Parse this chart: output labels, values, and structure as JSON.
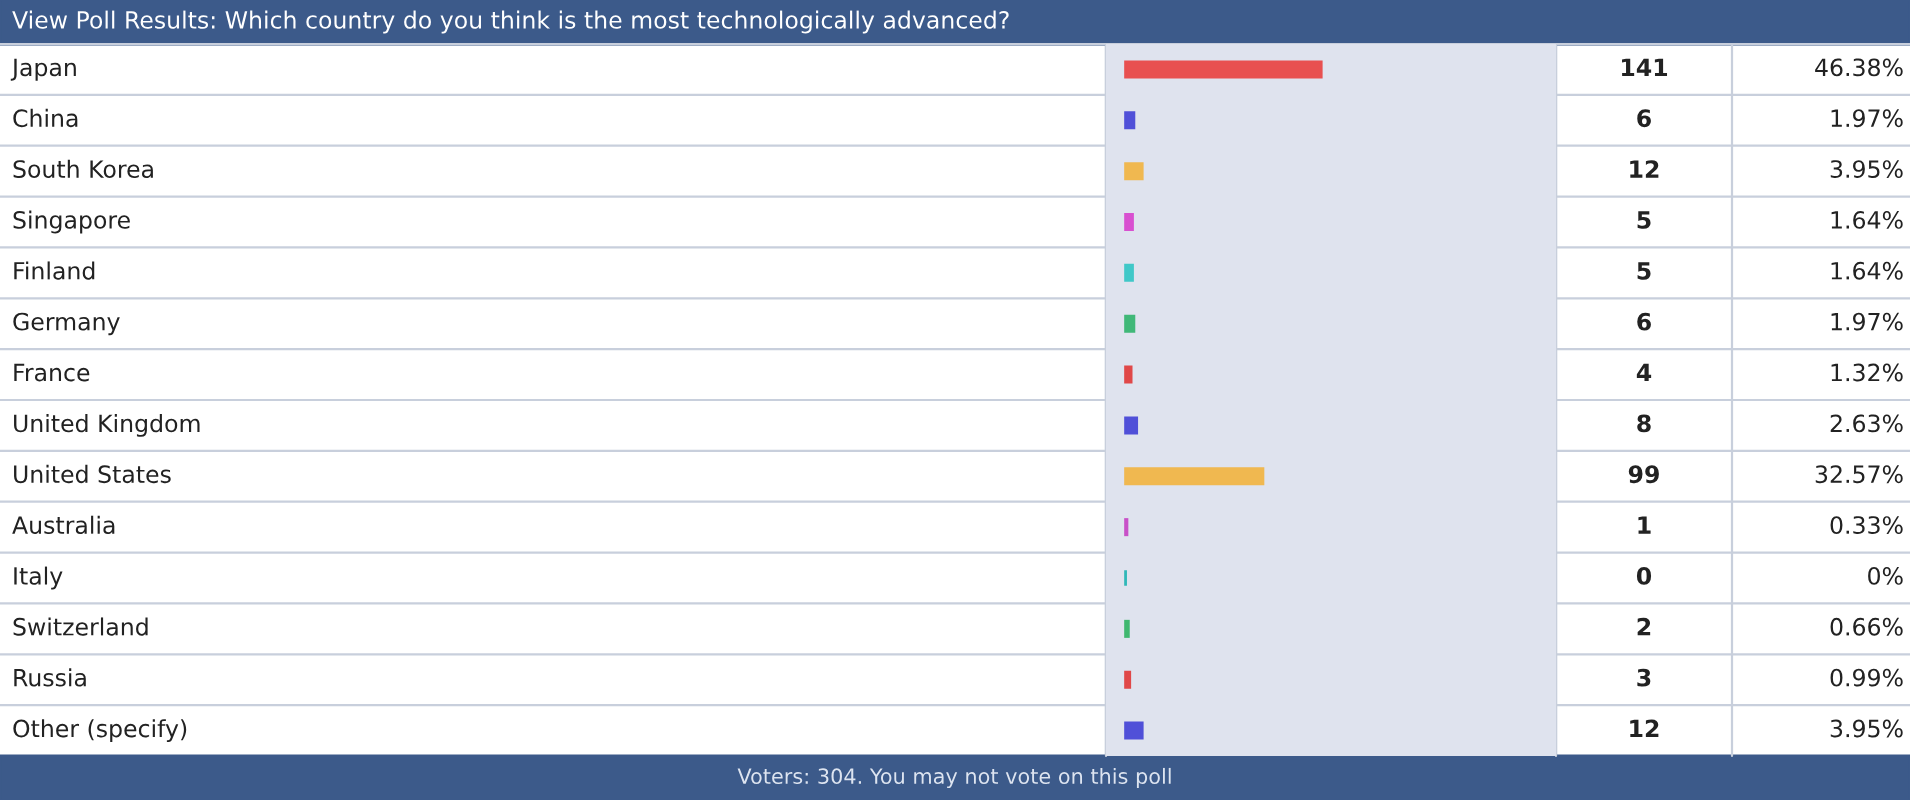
{
  "chart_data": {
    "type": "bar",
    "orientation": "horizontal",
    "title": "View Poll Results: Which country do you think is the most technologically advanced?",
    "categories": [
      "Japan",
      "China",
      "South Korea",
      "Singapore",
      "Finland",
      "Germany",
      "France",
      "United Kingdom",
      "United States",
      "Australia",
      "Italy",
      "Switzerland",
      "Russia",
      "Other (specify)"
    ],
    "values": [
      141,
      6,
      12,
      5,
      5,
      6,
      4,
      8,
      99,
      1,
      0,
      2,
      3,
      12
    ],
    "colors": [
      "#e85050",
      "#5050d8",
      "#f0b850",
      "#d850d0",
      "#40c8c8",
      "#40b878",
      "#e04848",
      "#5050d8",
      "#f0b850",
      "#c850c8",
      "#30b8b8",
      "#40b870",
      "#e04848",
      "#5050d8"
    ],
    "value_labels": [
      "141",
      "6",
      "12",
      "5",
      "5",
      "6",
      "4",
      "8",
      "99",
      "1",
      "0",
      "2",
      "3",
      "12"
    ],
    "annotations": [
      "46.38%",
      "1.97%",
      "3.95%",
      "1.64%",
      "1.64%",
      "1.97%",
      "1.32%",
      "2.63%",
      "32.57%",
      "0.33%",
      "0%",
      "0.66%",
      "0.99%",
      "3.95%",
      "Voters: 304. You may not vote on this poll"
    ]
  }
}
